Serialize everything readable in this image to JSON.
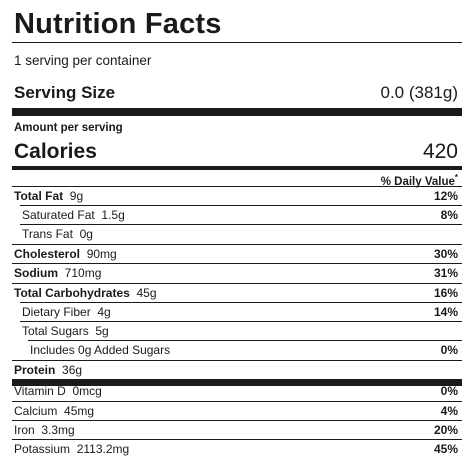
{
  "label": {
    "title": "Nutrition Facts",
    "servings_per_container": "1 serving per container",
    "serving_size_label": "Serving Size",
    "serving_size_value": "0.0 (381g)",
    "amount_per_serving": "Amount per serving",
    "calories_label": "Calories",
    "calories_value": "420",
    "daily_value_header": "% Daily Value",
    "daily_value_mark": "*"
  },
  "nutrients": [
    {
      "name": "Total Fat",
      "amount": "9g",
      "pct": "12%"
    },
    {
      "name": "Saturated Fat",
      "amount": "1.5g",
      "pct": "8%"
    },
    {
      "name": "Trans Fat",
      "amount": "0g",
      "pct": ""
    },
    {
      "name": "Cholesterol",
      "amount": "90mg",
      "pct": "30%"
    },
    {
      "name": "Sodium",
      "amount": "710mg",
      "pct": "31%"
    },
    {
      "name": "Total Carbohydrates",
      "amount": "45g",
      "pct": "16%"
    },
    {
      "name": "Dietary Fiber",
      "amount": "4g",
      "pct": "14%"
    },
    {
      "name": "Total Sugars",
      "amount": "5g",
      "pct": ""
    },
    {
      "name": "Includes 0g Added Sugars",
      "amount": "",
      "pct": "0%"
    },
    {
      "name": "Protein",
      "amount": "36g",
      "pct": ""
    }
  ],
  "vitamins": [
    {
      "name": "Vitamin D",
      "amount": "0mcg",
      "pct": "0%"
    },
    {
      "name": "Calcium",
      "amount": "45mg",
      "pct": "4%"
    },
    {
      "name": "Iron",
      "amount": "3.3mg",
      "pct": "20%"
    },
    {
      "name": "Potassium",
      "amount": "2113.2mg",
      "pct": "45%"
    }
  ]
}
